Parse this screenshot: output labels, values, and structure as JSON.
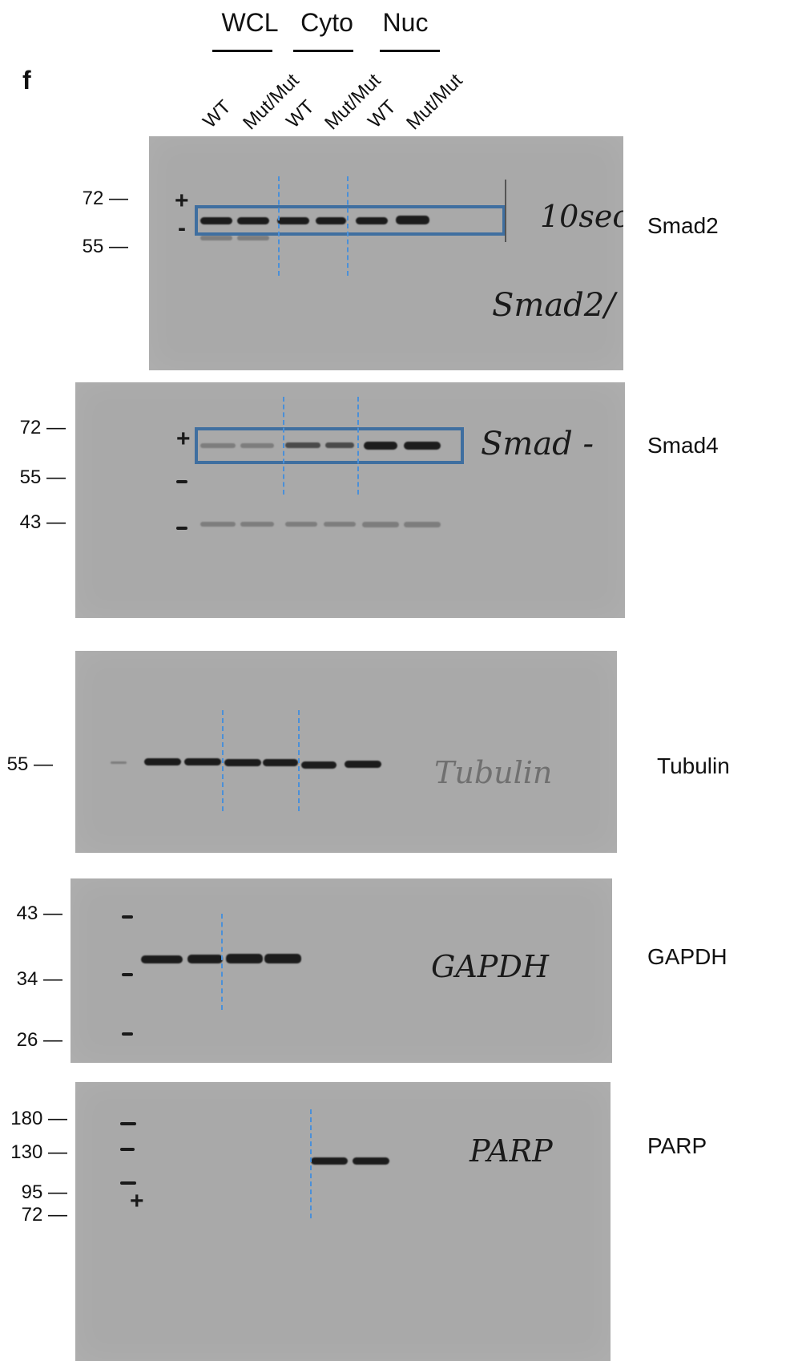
{
  "panel_letter": "f",
  "groups": [
    {
      "label": "WCL"
    },
    {
      "label": "Cyto"
    },
    {
      "label": "Nuc"
    }
  ],
  "lanes": [
    "WT",
    "Mut/Mut",
    "WT",
    "Mut/Mut",
    "WT",
    "Mut/Mut"
  ],
  "blots": [
    {
      "protein": "Smad2",
      "mw_markers": [
        "72 —",
        "55 —"
      ],
      "handwriting": [
        "10sec",
        "Smad2/"
      ],
      "marker_symbols": [
        "+",
        "-"
      ]
    },
    {
      "protein": "Smad4",
      "mw_markers": [
        "72 —",
        "55 —",
        "43 —"
      ],
      "handwriting": [
        "Smad -"
      ],
      "marker_symbols": [
        "+"
      ]
    },
    {
      "protein": "Tubulin",
      "mw_markers": [
        "55 —"
      ],
      "handwriting": [
        "Tubulin"
      ]
    },
    {
      "protein": "GAPDH",
      "mw_markers": [
        "43 —",
        "34 —",
        "26 —"
      ],
      "handwriting": [
        "GAPDH"
      ]
    },
    {
      "protein": "PARP",
      "mw_markers": [
        "180 —",
        "130 —",
        "95 —",
        "72 —"
      ],
      "handwriting": [
        "PARP"
      ],
      "marker_symbols": [
        "+"
      ]
    }
  ],
  "colors": {
    "membrane": "#a9a9a9",
    "box": "#3f6fa0",
    "dashed_line": "#4a90d9"
  }
}
